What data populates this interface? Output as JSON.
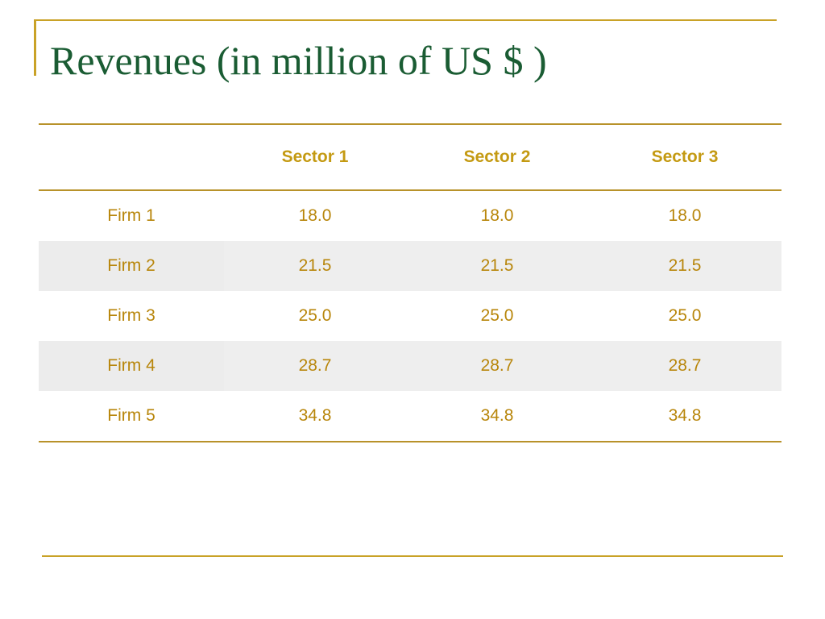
{
  "slide": {
    "title": "Revenues (in million of US $ )",
    "table": {
      "columns": [
        "",
        "Sector 1",
        "Sector 2",
        "Sector 3"
      ],
      "rows": [
        {
          "label": "Firm 1",
          "values": [
            "18.0",
            "18.0",
            "18.0"
          ]
        },
        {
          "label": "Firm 2",
          "values": [
            "21.5",
            "21.5",
            "21.5"
          ]
        },
        {
          "label": "Firm 3",
          "values": [
            "25.0",
            "25.0",
            "25.0"
          ]
        },
        {
          "label": "Firm 4",
          "values": [
            "28.7",
            "28.7",
            "28.7"
          ]
        },
        {
          "label": "Firm 5",
          "values": [
            "34.8",
            "34.8",
            "34.8"
          ]
        }
      ]
    }
  },
  "colors": {
    "title": "#1a5c33",
    "accent": "#c9a227",
    "text": "#b8860b",
    "row_shade": "#eeeeee"
  }
}
